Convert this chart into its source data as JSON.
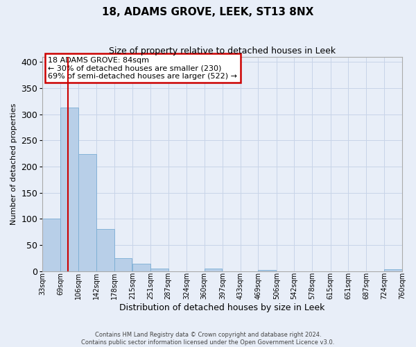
{
  "title": "18, ADAMS GROVE, LEEK, ST13 8NX",
  "subtitle": "Size of property relative to detached houses in Leek",
  "xlabel": "Distribution of detached houses by size in Leek",
  "ylabel": "Number of detached properties",
  "bin_edges": [
    33,
    69,
    106,
    142,
    178,
    215,
    251,
    287,
    324,
    360,
    397,
    433,
    469,
    506,
    542,
    578,
    615,
    651,
    687,
    724,
    760
  ],
  "bar_heights": [
    100,
    313,
    224,
    80,
    25,
    14,
    5,
    0,
    0,
    5,
    0,
    0,
    2,
    0,
    0,
    0,
    0,
    0,
    0,
    4
  ],
  "bar_color": "#b8cfe8",
  "bar_edgecolor": "#7aadd4",
  "property_size": 84,
  "vline_color": "#cc0000",
  "annotation_text": "18 ADAMS GROVE: 84sqm\n← 30% of detached houses are smaller (230)\n69% of semi-detached houses are larger (522) →",
  "annotation_box_facecolor": "#ffffff",
  "annotation_border_color": "#cc0000",
  "ylim": [
    0,
    410
  ],
  "yticks": [
    0,
    50,
    100,
    150,
    200,
    250,
    300,
    350,
    400
  ],
  "grid_color": "#c8d4e8",
  "bg_color": "#e8eef8",
  "footer_line1": "Contains HM Land Registry data © Crown copyright and database right 2024.",
  "footer_line2": "Contains public sector information licensed under the Open Government Licence v3.0."
}
